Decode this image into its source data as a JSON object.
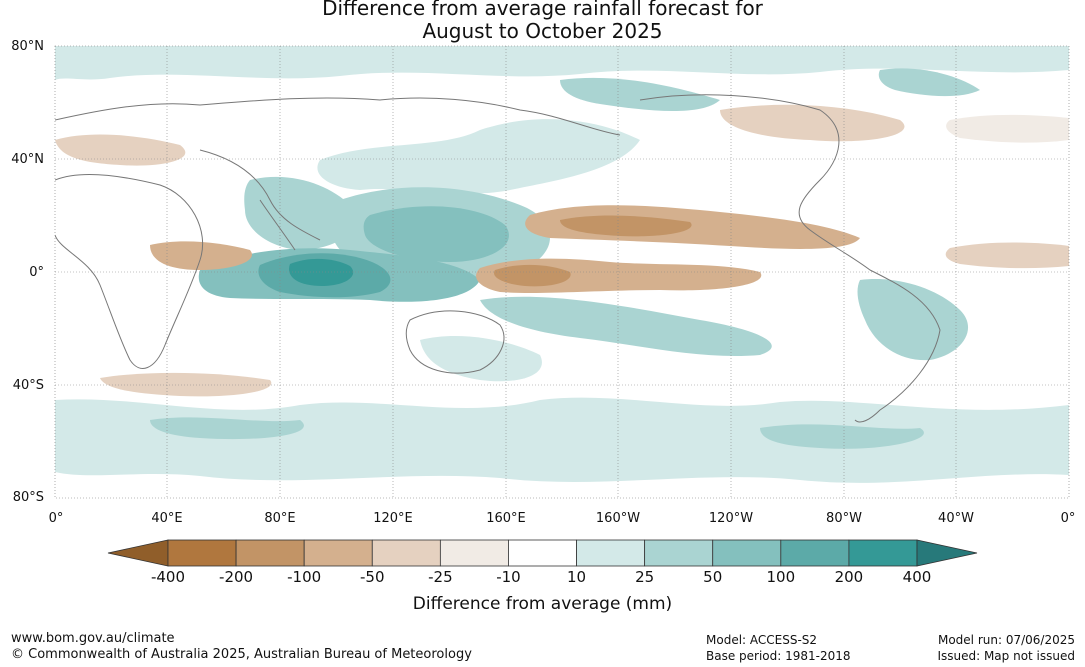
{
  "title_line1": "Difference from average rainfall forecast for",
  "title_line2": "August to October 2025",
  "lat_labels": [
    "80°N",
    "40°N",
    "0°",
    "40°S",
    "80°S"
  ],
  "lon_labels": [
    "0°",
    "40°E",
    "80°E",
    "120°E",
    "160°E",
    "160°W",
    "120°W",
    "80°W",
    "40°W",
    "0°"
  ],
  "colorbar": {
    "ticks": [
      "-400",
      "-200",
      "-100",
      "-50",
      "-25",
      "-10",
      "10",
      "25",
      "50",
      "100",
      "200",
      "400"
    ],
    "colors": [
      "#905e2a",
      "#b0773e",
      "#c29466",
      "#d4b08e",
      "#e5d1c0",
      "#f1ebe5",
      "#ffffff",
      "#d3e9e8",
      "#aad4d2",
      "#84c0be",
      "#5caaa8",
      "#349996",
      "#27797a"
    ],
    "label": "Difference from average (mm)"
  },
  "footer": {
    "url": "www.bom.gov.au/climate",
    "copyright": "© Commonwealth of Australia 2025, Australian Bureau of Meteorology",
    "model": "Model: ACCESS-S2",
    "base_period": "Base period: 1981-2018",
    "model_run": "Model run: 07/06/2025",
    "issued": "Issued: Map not issued"
  },
  "anomaly_regions": [
    {
      "name": "maritime-continent-wet",
      "level": 200
    },
    {
      "name": "eastern-indian-ocean-wet",
      "level": 100
    },
    {
      "name": "western-pacific-wet",
      "level": 100
    },
    {
      "name": "bay-of-bengal-wet",
      "level": 50
    },
    {
      "name": "south-pacific-convergence-wet",
      "level": 50
    },
    {
      "name": "equatorial-central-pacific-dry",
      "level": -100
    },
    {
      "name": "northeast-pacific-dry",
      "level": -100
    },
    {
      "name": "western-indian-ocean-dry",
      "level": -50
    },
    {
      "name": "south-america-wet",
      "level": 50
    },
    {
      "name": "southern-ocean-wet",
      "level": 25
    },
    {
      "name": "arctic-wet",
      "level": 25
    },
    {
      "name": "north-atlantic-dry",
      "level": -25
    }
  ]
}
